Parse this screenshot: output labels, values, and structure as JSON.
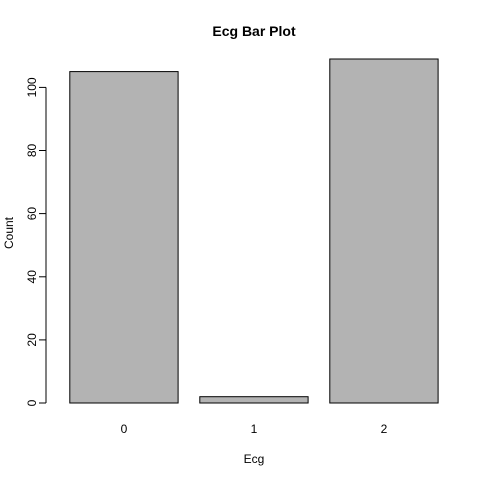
{
  "chart_data": {
    "type": "bar",
    "title": "Ecg Bar Plot",
    "xlabel": "Ecg",
    "ylabel": "Count",
    "categories": [
      "0",
      "1",
      "2"
    ],
    "values": [
      105,
      2,
      109
    ],
    "ylim": [
      0,
      109
    ],
    "yticks": [
      0,
      20,
      40,
      60,
      80,
      100
    ],
    "bar_color": "#b3b3b3",
    "bar_border_color": "#000000",
    "grid": false
  }
}
